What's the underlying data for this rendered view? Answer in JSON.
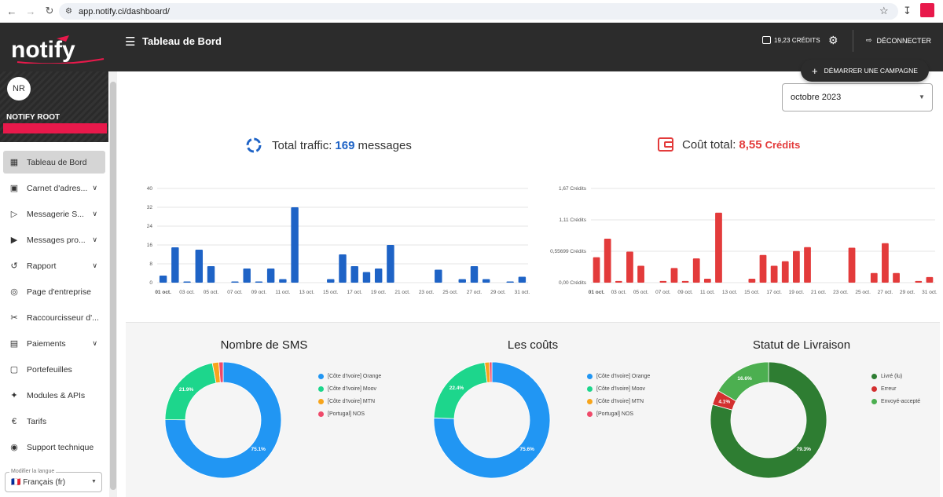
{
  "browser": {
    "url": "app.notify.ci/dashboard/"
  },
  "app": {
    "logo_text": "notify",
    "page_title": "Tableau de Bord"
  },
  "header": {
    "credits": "19,23 CRÉDITS",
    "logout": "DÉCONNECTER",
    "start_campaign": "DÉMARRER UNE CAMPAGNE"
  },
  "profile": {
    "initials": "NR",
    "name": "NOTIFY ROOT"
  },
  "sidebar": {
    "items": [
      {
        "label": "Tableau de Bord",
        "icon": "dashboard-icon",
        "chevron": false,
        "active": true
      },
      {
        "label": "Carnet d'adres...",
        "icon": "contacts-icon",
        "chevron": true
      },
      {
        "label": "Messagerie S...",
        "icon": "send-icon",
        "chevron": true
      },
      {
        "label": "Messages pro...",
        "icon": "scheduled-send-icon",
        "chevron": true
      },
      {
        "label": "Rapport",
        "icon": "history-icon",
        "chevron": true
      },
      {
        "label": "Page d'entreprise",
        "icon": "globe-icon",
        "chevron": false
      },
      {
        "label": "Raccourcisseur d'...",
        "icon": "scissors-icon",
        "chevron": false
      },
      {
        "label": "Paiements",
        "icon": "payments-icon",
        "chevron": true
      },
      {
        "label": "Portefeuilles",
        "icon": "wallet-icon",
        "chevron": false
      },
      {
        "label": "Modules & APIs",
        "icon": "modules-icon",
        "chevron": false
      },
      {
        "label": "Tarifs",
        "icon": "euro-icon",
        "chevron": false
      },
      {
        "label": "Support technique",
        "icon": "support-icon",
        "chevron": false
      }
    ],
    "language_label": "Modifier la langue",
    "language_value": "Français (fr)"
  },
  "filter": {
    "month": "octobre 2023"
  },
  "stats": {
    "traffic_label": "Total traffic:",
    "traffic_value": "169",
    "traffic_unit": "messages",
    "cost_label": "Coût total:",
    "cost_value": "8,55",
    "cost_unit": "Crédits"
  },
  "colors": {
    "blue": "#1e63c6",
    "red": "#e33b3b",
    "orange_op": "#2196f3",
    "moov": "#1dd68c",
    "mtn": "#f7a51c",
    "nos": "#ef4a6a",
    "livre": "#2e7d32",
    "erreur": "#d32f2f",
    "envoye": "#4caf50"
  },
  "chart_data": [
    {
      "type": "bar",
      "title": "",
      "x": [
        "01 oct.",
        "02 oct.",
        "03 oct.",
        "04 oct.",
        "05 oct.",
        "06 oct.",
        "07 oct.",
        "08 oct.",
        "09 oct.",
        "10 oct.",
        "11 oct.",
        "12 oct.",
        "13 oct.",
        "14 oct.",
        "15 oct.",
        "16 oct.",
        "17 oct.",
        "18 oct.",
        "19 oct.",
        "20 oct.",
        "21 oct.",
        "22 oct.",
        "23 oct.",
        "24 oct.",
        "25 oct.",
        "26 oct.",
        "27 oct.",
        "28 oct.",
        "29 oct.",
        "30 oct.",
        "31 oct."
      ],
      "x_tick_labels": [
        "01 oct.",
        "03 oct.",
        "05 oct.",
        "07 oct.",
        "09 oct.",
        "11 oct.",
        "13 oct.",
        "15 oct.",
        "17 oct.",
        "19 oct.",
        "21 oct.",
        "23 oct.",
        "25 oct.",
        "27 oct.",
        "29 oct.",
        "31 oct."
      ],
      "values": [
        3,
        15,
        0.5,
        14,
        7,
        0,
        0.5,
        6,
        0.5,
        6,
        1.5,
        32,
        0,
        0,
        1.5,
        12,
        7,
        4.5,
        6,
        16,
        0,
        0,
        0,
        5.5,
        0,
        1.5,
        7,
        1.5,
        0,
        0.5,
        2.5
      ],
      "y_ticks": [
        "0",
        "8",
        "16",
        "24",
        "32",
        "40"
      ],
      "ylim": [
        0,
        40
      ]
    },
    {
      "type": "bar",
      "title": "",
      "x": [
        "01 oct.",
        "02 oct.",
        "03 oct.",
        "04 oct.",
        "05 oct.",
        "06 oct.",
        "07 oct.",
        "08 oct.",
        "09 oct.",
        "10 oct.",
        "11 oct.",
        "12 oct.",
        "13 oct.",
        "14 oct.",
        "15 oct.",
        "16 oct.",
        "17 oct.",
        "18 oct.",
        "19 oct.",
        "20 oct.",
        "21 oct.",
        "22 oct.",
        "23 oct.",
        "24 oct.",
        "25 oct.",
        "26 oct.",
        "27 oct.",
        "28 oct.",
        "29 oct.",
        "30 oct.",
        "31 oct."
      ],
      "x_tick_labels": [
        "01 oct.",
        "03 oct.",
        "05 oct.",
        "07 oct.",
        "09 oct.",
        "11 oct.",
        "13 oct.",
        "15 oct.",
        "17 oct.",
        "19 oct.",
        "21 oct.",
        "23 oct.",
        "25 oct.",
        "27 oct.",
        "29 oct.",
        "31 oct."
      ],
      "values": [
        0.45,
        0.78,
        0.03,
        0.55,
        0.3,
        0,
        0.03,
        0.26,
        0.03,
        0.43,
        0.07,
        1.24,
        0,
        0,
        0.07,
        0.49,
        0.3,
        0.38,
        0.56,
        0.63,
        0,
        0,
        0,
        0.62,
        0,
        0.17,
        0.7,
        0.17,
        0,
        0.03,
        0.1
      ],
      "y_ticks": [
        "0,00 Crédits",
        "0,55699 Crédits",
        "1,11 Crédits",
        "1,67 Crédits"
      ],
      "ylim": [
        0,
        1.67
      ]
    },
    {
      "type": "pie",
      "title": "Nombre de SMS",
      "labels": [
        "[Côte d'Ivoire] Orange",
        "[Côte d'Ivoire] Moov",
        "[Côte d'Ivoire] MTN",
        "[Portugal] NOS"
      ],
      "values": [
        75.1,
        21.9,
        1.8,
        1.2
      ],
      "value_labels": [
        "75.1%",
        "21.9%",
        "",
        ""
      ]
    },
    {
      "type": "pie",
      "title": "Les coûts",
      "labels": [
        "[Côte d'Ivoire] Orange",
        "[Côte d'Ivoire] Moov",
        "[Côte d'Ivoire] MTN",
        "[Portugal] NOS"
      ],
      "values": [
        75.6,
        22.4,
        1.3,
        0.7
      ],
      "value_labels": [
        "75.6%",
        "22.4%",
        "",
        ""
      ]
    },
    {
      "type": "pie",
      "title": "Statut de Livraison",
      "labels": [
        "Livré (lu)",
        "Erreur",
        "Envoyé-accepté"
      ],
      "values": [
        79.3,
        4.1,
        16.6
      ],
      "value_labels": [
        "79.3%",
        "4.1%",
        "16.6%"
      ]
    }
  ]
}
